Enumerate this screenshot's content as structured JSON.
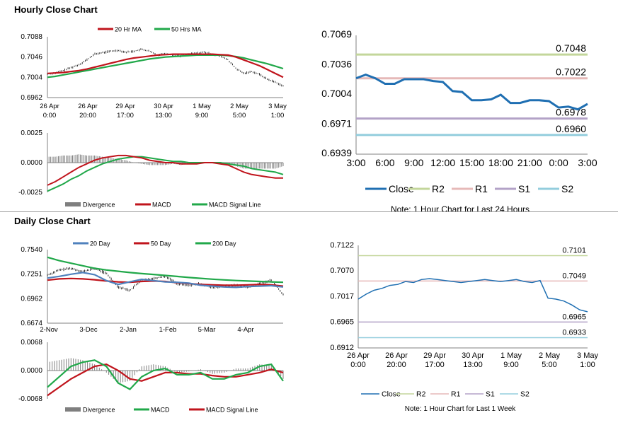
{
  "hourly": {
    "title": "Hourly Close Chart",
    "note": "Note: 1 Hour Chart for Last 24 Hours",
    "price_chart": {
      "type": "line",
      "legend": [
        "20 Hr MA",
        "50 Hrs MA"
      ],
      "colors": {
        "ma20": "#c0141c",
        "ma50": "#21a84a",
        "price": "#000000"
      },
      "ylim": [
        0.6962,
        0.7088
      ],
      "yticks": [
        "0.7088",
        "0.7046",
        "0.7004",
        "0.6962"
      ],
      "xticks": [
        [
          "26 Apr",
          "0:00"
        ],
        [
          "26 Apr",
          "20:00"
        ],
        [
          "29 Apr",
          "17:00"
        ],
        [
          "30 Apr",
          "13:00"
        ],
        [
          "1 May",
          "9:00"
        ],
        [
          "2 May",
          "5:00"
        ],
        [
          "3 May",
          "1:00"
        ]
      ],
      "ma20": [
        0.7012,
        0.7013,
        0.7014,
        0.7016,
        0.7018,
        0.7021,
        0.7025,
        0.7029,
        0.7033,
        0.7037,
        0.7041,
        0.7044,
        0.7046,
        0.7048,
        0.705,
        0.7051,
        0.7052,
        0.7052,
        0.7052,
        0.7052,
        0.7052,
        0.7052,
        0.7051,
        0.705,
        0.7046,
        0.704,
        0.7034,
        0.7028,
        0.702,
        0.7012,
        0.7004
      ],
      "ma50": [
        0.7004,
        0.7006,
        0.7009,
        0.7012,
        0.7015,
        0.7018,
        0.7021,
        0.7024,
        0.7027,
        0.703,
        0.7033,
        0.7036,
        0.7039,
        0.7042,
        0.7044,
        0.7046,
        0.7047,
        0.7048,
        0.7049,
        0.705,
        0.705,
        0.705,
        0.705,
        0.7049,
        0.7047,
        0.7044,
        0.704,
        0.7036,
        0.7032,
        0.7027,
        0.7022
      ],
      "close": [
        0.7011,
        0.7013,
        0.7018,
        0.7024,
        0.703,
        0.704,
        0.7052,
        0.7055,
        0.7058,
        0.706,
        0.7056,
        0.7058,
        0.7062,
        0.7058,
        0.705,
        0.7054,
        0.705,
        0.7048,
        0.7052,
        0.7054,
        0.7056,
        0.7052,
        0.7048,
        0.704,
        0.7022,
        0.7012,
        0.7016,
        0.701,
        0.7,
        0.6994,
        0.6986
      ]
    },
    "macd_chart": {
      "type": "line",
      "legend": [
        "Divergence",
        "MACD",
        "MACD Signal Line"
      ],
      "colors": {
        "macd": "#c0141c",
        "signal": "#21a84a",
        "divergence": "#7f7f7f"
      },
      "ylim": [
        -0.0025,
        0.0025
      ],
      "yticks": [
        "0.0025",
        "0.0000",
        "-0.0025"
      ],
      "macd": [
        -0.0019,
        -0.0016,
        -0.0012,
        -0.0008,
        -0.0004,
        -0.0001,
        0.0002,
        0.0004,
        0.0005,
        0.0006,
        0.0006,
        0.0005,
        0.0004,
        0.0002,
        0.0001,
        0.0,
        0.0,
        -0.0001,
        -0.0001,
        -0.0001,
        0.0,
        0.0,
        -0.0001,
        -0.0002,
        -0.0005,
        -0.0008,
        -0.001,
        -0.0011,
        -0.0012,
        -0.0013,
        -0.0013
      ],
      "signal": [
        -0.0024,
        -0.0021,
        -0.0018,
        -0.0014,
        -0.0011,
        -0.0007,
        -0.0004,
        -0.0001,
        0.0001,
        0.0003,
        0.0004,
        0.0005,
        0.0005,
        0.0004,
        0.0003,
        0.0002,
        0.0001,
        0.0001,
        0.0,
        0.0,
        0.0,
        0.0,
        0.0,
        -0.0001,
        -0.0002,
        -0.0003,
        -0.0005,
        -0.0006,
        -0.0007,
        -0.0008,
        -0.001
      ],
      "divergence": [
        0.0005,
        0.0005,
        0.0006,
        0.0006,
        0.0007,
        0.0006,
        0.0006,
        0.0005,
        0.0004,
        0.0003,
        0.0002,
        0.0,
        -0.0001,
        -0.0002,
        -0.0002,
        -0.0002,
        -0.0001,
        -0.0002,
        -0.0001,
        -0.0001,
        0.0,
        0.0,
        -0.0001,
        -0.0001,
        -0.0003,
        -0.0005,
        -0.0005,
        -0.0005,
        -0.0005,
        -0.0005,
        -0.0003
      ]
    },
    "levels_chart": {
      "type": "line",
      "ylim": [
        0.6939,
        0.7069
      ],
      "yticks": [
        "0.7069",
        "0.7036",
        "0.7004",
        "0.6971",
        "0.6939"
      ],
      "xticks": [
        "3:00",
        "6:00",
        "9:00",
        "12:00",
        "15:00",
        "18:00",
        "21:00",
        "0:00",
        "3:00"
      ],
      "levels": [
        {
          "name": "R2",
          "value": 0.7048,
          "label": "0.7048",
          "color": "#c3d69b"
        },
        {
          "name": "R1",
          "value": 0.7022,
          "label": "0.7022",
          "color": "#e6b9b8"
        },
        {
          "name": "S1",
          "value": 0.6978,
          "label": "0.6978",
          "color": "#b3a2c7"
        },
        {
          "name": "S2",
          "value": 0.696,
          "label": "0.6960",
          "color": "#93cddd"
        }
      ],
      "close": {
        "name": "Close",
        "color": "#1f6fb2",
        "values": [
          0.7022,
          0.7026,
          0.7022,
          0.7016,
          0.7016,
          0.7021,
          0.7021,
          0.7021,
          0.7019,
          0.7018,
          0.7008,
          0.7007,
          0.6998,
          0.6998,
          0.6999,
          0.7004,
          0.6995,
          0.6995,
          0.6998,
          0.6998,
          0.6997,
          0.699,
          0.6991,
          0.6988,
          0.6994
        ]
      },
      "legend": [
        "Close",
        "R2",
        "R1",
        "S1",
        "S2"
      ]
    }
  },
  "daily": {
    "title": "Daily Close Chart",
    "note": "Note: 1 Hour Chart for Last 1 Week",
    "price_chart": {
      "type": "line",
      "legend": [
        "20 Day",
        "50 Day",
        "200 Day"
      ],
      "colors": {
        "ma20": "#4f81bd",
        "ma50": "#c0141c",
        "ma200": "#21a84a",
        "price": "#000000"
      },
      "ylim": [
        0.6674,
        0.754
      ],
      "yticks": [
        "0.7540",
        "0.7251",
        "0.6962",
        "0.6674"
      ],
      "xticks": [
        "2-Nov",
        "3-Dec",
        "2-Jan",
        "1-Feb",
        "5-Mar",
        "4-Apr"
      ],
      "ma20": [
        0.7205,
        0.7225,
        0.725,
        0.727,
        0.7245,
        0.7175,
        0.713,
        0.716,
        0.719,
        0.7175,
        0.716,
        0.7155,
        0.7145,
        0.712,
        0.711,
        0.71,
        0.7095,
        0.7105,
        0.711,
        0.7115,
        0.71
      ],
      "ma50": [
        0.718,
        0.7195,
        0.72,
        0.7195,
        0.7185,
        0.717,
        0.716,
        0.7155,
        0.7165,
        0.717,
        0.7165,
        0.715,
        0.714,
        0.713,
        0.7125,
        0.712,
        0.712,
        0.7125,
        0.713,
        0.7125,
        0.711
      ],
      "ma200": [
        0.745,
        0.741,
        0.738,
        0.735,
        0.732,
        0.73,
        0.7285,
        0.727,
        0.7258,
        0.7248,
        0.7236,
        0.7224,
        0.7212,
        0.7202,
        0.7192,
        0.7184,
        0.7176,
        0.717,
        0.7165,
        0.716,
        0.7155
      ],
      "close": [
        0.724,
        0.73,
        0.732,
        0.728,
        0.732,
        0.726,
        0.71,
        0.706,
        0.718,
        0.72,
        0.723,
        0.714,
        0.712,
        0.714,
        0.709,
        0.711,
        0.712,
        0.71,
        0.714,
        0.718,
        0.701
      ]
    },
    "macd_chart": {
      "type": "line",
      "legend": [
        "Divergence",
        "MACD",
        "MACD Signal Line"
      ],
      "colors": {
        "macd": "#21a84a",
        "signal": "#c0141c",
        "divergence": "#7f7f7f"
      },
      "ylim": [
        -0.0068,
        0.0068
      ],
      "yticks": [
        "0.0068",
        "0.0000",
        "-0.0068"
      ],
      "macd": [
        -0.004,
        -0.0015,
        0.001,
        0.002,
        0.0025,
        0.001,
        -0.003,
        -0.0045,
        -0.0015,
        0.0,
        0.0005,
        -0.001,
        -0.001,
        -0.0005,
        -0.002,
        -0.002,
        -0.001,
        -0.0005,
        0.001,
        0.0015,
        -0.0025
      ],
      "signal": [
        -0.006,
        -0.004,
        -0.002,
        -0.0005,
        0.001,
        0.0015,
        0.0,
        -0.002,
        -0.0025,
        -0.0015,
        -0.0005,
        -0.0005,
        -0.0008,
        -0.0008,
        -0.0012,
        -0.0015,
        -0.0015,
        -0.001,
        -0.0005,
        0.0003,
        -0.0005
      ],
      "divergence": [
        0.002,
        0.0025,
        0.003,
        0.0025,
        0.0015,
        -0.0005,
        -0.003,
        -0.0025,
        0.001,
        0.0015,
        0.001,
        -0.0005,
        -0.0002,
        0.0003,
        -0.0008,
        -0.0005,
        0.0005,
        0.0005,
        0.0015,
        0.0012,
        -0.002
      ]
    },
    "levels_chart": {
      "type": "line",
      "ylim": [
        0.6912,
        0.7122
      ],
      "yticks": [
        "0.7122",
        "0.7070",
        "0.7017",
        "0.6965",
        "0.6912"
      ],
      "xticks": [
        [
          "26 Apr",
          "0:00"
        ],
        [
          "26 Apr",
          "20:00"
        ],
        [
          "29 Apr",
          "17:00"
        ],
        [
          "30 Apr",
          "13:00"
        ],
        [
          "1 May",
          "9:00"
        ],
        [
          "2 May",
          "5:00"
        ],
        [
          "3 May",
          "1:00"
        ]
      ],
      "levels": [
        {
          "name": "R2",
          "value": 0.7101,
          "label": "0.7101",
          "color": "#c3d69b"
        },
        {
          "name": "R1",
          "value": 0.7049,
          "label": "0.7049",
          "color": "#e6b9b8"
        },
        {
          "name": "S1",
          "value": 0.6965,
          "label": "0.6965",
          "color": "#b3a2c7"
        },
        {
          "name": "S2",
          "value": 0.6933,
          "label": "0.6933",
          "color": "#93cddd"
        }
      ],
      "close": {
        "name": "Close",
        "color": "#1f6fb2",
        "values": [
          0.7012,
          0.7022,
          0.703,
          0.7034,
          0.704,
          0.7042,
          0.7048,
          0.7046,
          0.7052,
          0.7054,
          0.7052,
          0.705,
          0.7048,
          0.7046,
          0.7048,
          0.705,
          0.7052,
          0.705,
          0.7048,
          0.705,
          0.7052,
          0.7048,
          0.7046,
          0.705,
          0.7014,
          0.7012,
          0.7008,
          0.7,
          0.699,
          0.6986
        ]
      },
      "legend": [
        "Close",
        "R2",
        "R1",
        "S1",
        "S2"
      ]
    }
  }
}
